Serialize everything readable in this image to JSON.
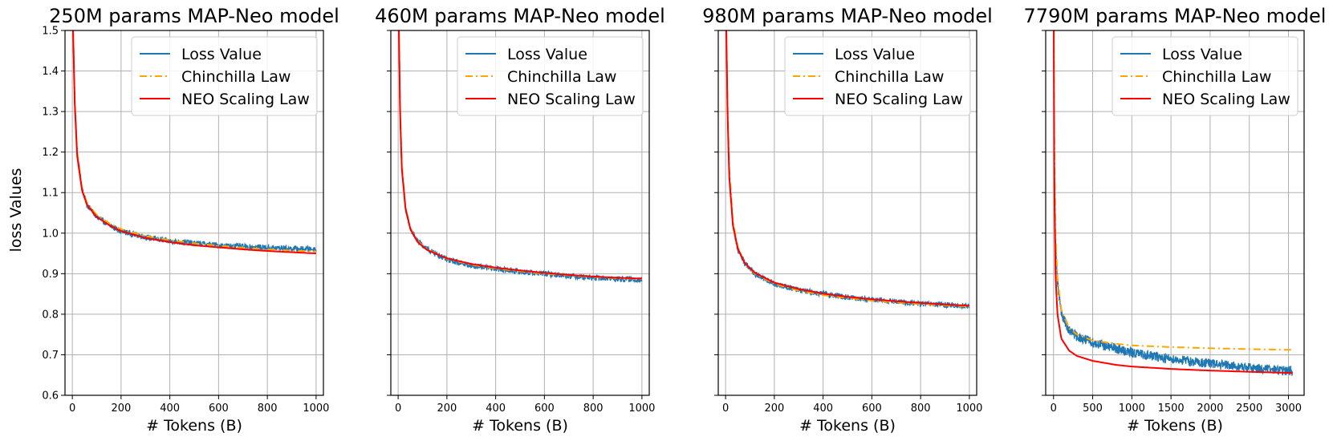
{
  "figure": {
    "ylabel": "loss Values"
  },
  "chart_data": [
    {
      "type": "line",
      "title": "250M params MAP-Neo model",
      "xlabel": "# Tokens (B)",
      "ylabel": "loss Values",
      "xlim": [
        -30,
        1030
      ],
      "ylim": [
        0.6,
        1.5
      ],
      "xticks": [
        0,
        200,
        400,
        600,
        800,
        1000
      ],
      "yticks": [
        0.6,
        0.7,
        0.8,
        0.9,
        1.0,
        1.1,
        1.2,
        1.3,
        1.4,
        1.5
      ],
      "ytick_labels": [
        "0.6",
        "0.7",
        "0.8",
        "0.9",
        "1.0",
        "1.1",
        "1.2",
        "1.3",
        "1.4",
        "1.5"
      ],
      "grid": true,
      "legend_position": "top-right",
      "x_max_data": 1000,
      "series": [
        {
          "name": "Loss Value",
          "color": "#1f77b4",
          "style": "solid-noisy",
          "x": [
            3,
            10,
            20,
            40,
            60,
            100,
            150,
            200,
            300,
            400,
            500,
            600,
            700,
            800,
            900,
            1000
          ],
          "y": [
            1.5,
            1.33,
            1.2,
            1.11,
            1.07,
            1.04,
            1.02,
            1.005,
            0.99,
            0.98,
            0.975,
            0.97,
            0.967,
            0.964,
            0.962,
            0.96
          ]
        },
        {
          "name": "Chinchilla Law",
          "color": "#ffa500",
          "style": "dashdot",
          "x": [
            3,
            10,
            20,
            40,
            60,
            100,
            150,
            200,
            300,
            400,
            500,
            600,
            700,
            800,
            900,
            1000
          ],
          "y": [
            1.5,
            1.33,
            1.2,
            1.11,
            1.075,
            1.045,
            1.025,
            1.01,
            0.993,
            0.983,
            0.975,
            0.969,
            0.964,
            0.96,
            0.957,
            0.955
          ]
        },
        {
          "name": "NEO Scaling Law",
          "color": "#ff0000",
          "style": "solid",
          "x": [
            3,
            10,
            20,
            40,
            60,
            100,
            150,
            200,
            300,
            400,
            500,
            600,
            700,
            800,
            900,
            1000
          ],
          "y": [
            1.5,
            1.32,
            1.19,
            1.105,
            1.07,
            1.04,
            1.02,
            1.005,
            0.988,
            0.978,
            0.97,
            0.965,
            0.96,
            0.956,
            0.953,
            0.95
          ]
        }
      ]
    },
    {
      "type": "line",
      "title": "460M params MAP-Neo model",
      "xlabel": "# Tokens (B)",
      "ylabel": "",
      "xlim": [
        -30,
        1030
      ],
      "ylim": [
        0.6,
        1.5
      ],
      "xticks": [
        0,
        200,
        400,
        600,
        800,
        1000
      ],
      "yticks": [
        0.6,
        0.7,
        0.8,
        0.9,
        1.0,
        1.1,
        1.2,
        1.3,
        1.4,
        1.5
      ],
      "ytick_labels": [],
      "grid": true,
      "legend_position": "top-right",
      "x_max_data": 1000,
      "series": [
        {
          "name": "Loss Value",
          "color": "#1f77b4",
          "style": "solid-noisy",
          "x": [
            3,
            8,
            15,
            30,
            50,
            80,
            120,
            200,
            300,
            400,
            500,
            600,
            700,
            800,
            900,
            1000
          ],
          "y": [
            1.5,
            1.3,
            1.16,
            1.06,
            1.01,
            0.98,
            0.96,
            0.935,
            0.92,
            0.912,
            0.905,
            0.9,
            0.895,
            0.89,
            0.887,
            0.885
          ]
        },
        {
          "name": "Chinchilla Law",
          "color": "#ffa500",
          "style": "dashdot",
          "x": [
            3,
            8,
            15,
            30,
            50,
            80,
            120,
            200,
            300,
            400,
            500,
            600,
            700,
            800,
            900,
            1000
          ],
          "y": [
            1.5,
            1.31,
            1.17,
            1.065,
            1.012,
            0.98,
            0.96,
            0.937,
            0.922,
            0.913,
            0.906,
            0.9,
            0.896,
            0.892,
            0.889,
            0.887
          ]
        },
        {
          "name": "NEO Scaling Law",
          "color": "#ff0000",
          "style": "solid",
          "x": [
            3,
            8,
            15,
            30,
            50,
            80,
            120,
            200,
            300,
            400,
            500,
            600,
            700,
            800,
            900,
            1000
          ],
          "y": [
            1.5,
            1.3,
            1.16,
            1.062,
            1.01,
            0.978,
            0.958,
            0.938,
            0.924,
            0.915,
            0.908,
            0.902,
            0.897,
            0.893,
            0.89,
            0.888
          ]
        }
      ]
    },
    {
      "type": "line",
      "title": "980M params MAP-Neo model",
      "xlabel": "# Tokens (B)",
      "ylabel": "",
      "xlim": [
        -30,
        1030
      ],
      "ylim": [
        0.6,
        1.5
      ],
      "xticks": [
        0,
        200,
        400,
        600,
        800,
        1000
      ],
      "yticks": [
        0.6,
        0.7,
        0.8,
        0.9,
        1.0,
        1.1,
        1.2,
        1.3,
        1.4,
        1.5
      ],
      "ytick_labels": [],
      "grid": true,
      "legend_position": "top-right",
      "x_max_data": 1000,
      "series": [
        {
          "name": "Loss Value",
          "color": "#1f77b4",
          "style": "solid-noisy",
          "x": [
            3,
            8,
            15,
            30,
            50,
            80,
            120,
            200,
            300,
            400,
            500,
            600,
            700,
            800,
            900,
            1000
          ],
          "y": [
            1.5,
            1.3,
            1.14,
            1.02,
            0.96,
            0.925,
            0.9,
            0.875,
            0.86,
            0.85,
            0.842,
            0.836,
            0.831,
            0.826,
            0.823,
            0.82
          ]
        },
        {
          "name": "Chinchilla Law",
          "color": "#ffa500",
          "style": "dashdot",
          "x": [
            3,
            8,
            15,
            30,
            50,
            80,
            120,
            200,
            300,
            400,
            500,
            600,
            700,
            800,
            900,
            1000
          ],
          "y": [
            1.5,
            1.32,
            1.16,
            1.03,
            0.965,
            0.925,
            0.9,
            0.875,
            0.858,
            0.847,
            0.84,
            0.834,
            0.829,
            0.825,
            0.822,
            0.819
          ]
        },
        {
          "name": "NEO Scaling Law",
          "color": "#ff0000",
          "style": "solid",
          "x": [
            3,
            8,
            15,
            30,
            50,
            80,
            120,
            200,
            300,
            400,
            500,
            600,
            700,
            800,
            900,
            1000
          ],
          "y": [
            1.5,
            1.3,
            1.14,
            1.02,
            0.962,
            0.925,
            0.902,
            0.878,
            0.862,
            0.851,
            0.843,
            0.837,
            0.832,
            0.828,
            0.824,
            0.821
          ]
        }
      ]
    },
    {
      "type": "line",
      "title": "7790M params MAP-Neo model",
      "xlabel": "# Tokens (B)",
      "ylabel": "",
      "xlim": [
        -100,
        3200
      ],
      "ylim": [
        0.6,
        1.5
      ],
      "xticks": [
        0,
        500,
        1000,
        1500,
        2000,
        2500,
        3000
      ],
      "yticks": [
        0.6,
        0.7,
        0.8,
        0.9,
        1.0,
        1.1,
        1.2,
        1.3,
        1.4,
        1.5
      ],
      "ytick_labels": [],
      "grid": true,
      "legend_position": "top-right",
      "x_max_data": 3050,
      "series": [
        {
          "name": "Loss Value",
          "color": "#1f77b4",
          "style": "solid-noisy",
          "x": [
            3,
            10,
            25,
            50,
            100,
            200,
            300,
            500,
            800,
            1000,
            1500,
            2000,
            2500,
            3050
          ],
          "y": [
            1.5,
            1.18,
            0.98,
            0.88,
            0.8,
            0.76,
            0.745,
            0.73,
            0.715,
            0.705,
            0.69,
            0.678,
            0.668,
            0.66
          ]
        },
        {
          "name": "Chinchilla Law",
          "color": "#ffa500",
          "style": "dashdot",
          "x": [
            3,
            10,
            25,
            50,
            100,
            200,
            300,
            500,
            800,
            1000,
            1500,
            2000,
            2500,
            3050
          ],
          "y": [
            1.5,
            1.22,
            1.0,
            0.89,
            0.81,
            0.765,
            0.75,
            0.735,
            0.727,
            0.723,
            0.719,
            0.716,
            0.714,
            0.712
          ]
        },
        {
          "name": "NEO Scaling Law",
          "color": "#ff0000",
          "style": "solid",
          "x": [
            3,
            10,
            25,
            50,
            100,
            200,
            300,
            500,
            800,
            1000,
            1500,
            2000,
            2500,
            3050
          ],
          "y": [
            1.5,
            1.12,
            0.9,
            0.8,
            0.74,
            0.71,
            0.697,
            0.685,
            0.675,
            0.671,
            0.665,
            0.661,
            0.658,
            0.655
          ]
        }
      ]
    }
  ]
}
